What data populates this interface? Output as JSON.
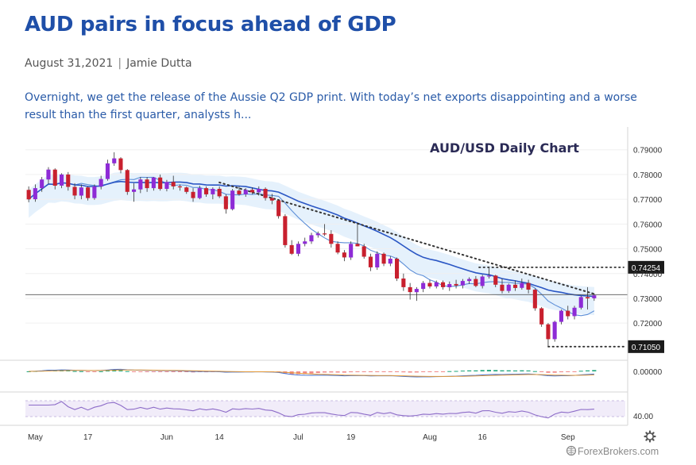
{
  "article": {
    "title": "AUD pairs in focus ahead of GDP",
    "date": "August 31,2021",
    "author": "Jamie Dutta",
    "summary": "Overnight, we get the release of the Aussie Q2 GDP print. With today’s net exports disappointing and a worse result than the first quarter, analysts h..."
  },
  "watermark": "ForexBrokers.com",
  "icons": {
    "settings": "gear-icon",
    "watermark": "forexbrokers-logo-icon"
  },
  "colors": {
    "up": "#8e2bd6",
    "down": "#c8202e",
    "ma_fast": "#5d8fd8",
    "ma_slow": "#2a56c4",
    "band": "#dcecfb",
    "osc_pos": "#19a47a",
    "osc_neg": "#f08a8a",
    "rsi": "#8d6cc8"
  },
  "chart_data": {
    "type": "candlestick",
    "title": "AUD/USD Daily Chart",
    "y_ticks": [
      "0.79000",
      "0.78000",
      "0.77000",
      "0.76000",
      "0.75000",
      "0.74000",
      "0.73000",
      "0.72000"
    ],
    "ylim": [
      0.705,
      0.796
    ],
    "x_ticks": [
      "May",
      "17",
      "Jun",
      "14",
      "Jul",
      "19",
      "Aug",
      "16",
      "Sep"
    ],
    "horizontal_levels": [
      {
        "label": "0.74254",
        "value": 0.74254
      },
      {
        "label": "0.71050",
        "value": 0.7105
      }
    ],
    "current_price": 0.7315,
    "trendline": {
      "from": [
        "Jun 11",
        0.7768
      ],
      "to": [
        "Aug 30",
        0.7318
      ]
    },
    "candles_ohlc": [
      [
        0.7738,
        0.7752,
        0.7688,
        0.77
      ],
      [
        0.77,
        0.776,
        0.769,
        0.7745
      ],
      [
        0.7745,
        0.779,
        0.773,
        0.778
      ],
      [
        0.778,
        0.783,
        0.7762,
        0.782
      ],
      [
        0.782,
        0.7825,
        0.774,
        0.7755
      ],
      [
        0.7755,
        0.7805,
        0.7745,
        0.78
      ],
      [
        0.78,
        0.781,
        0.7735,
        0.775
      ],
      [
        0.775,
        0.7765,
        0.77,
        0.7715
      ],
      [
        0.7715,
        0.776,
        0.77,
        0.7748
      ],
      [
        0.7748,
        0.7752,
        0.7695,
        0.7705
      ],
      [
        0.7705,
        0.776,
        0.7698,
        0.7752
      ],
      [
        0.7752,
        0.7795,
        0.774,
        0.7782
      ],
      [
        0.7782,
        0.786,
        0.7775,
        0.7845
      ],
      [
        0.7845,
        0.789,
        0.7835,
        0.7865
      ],
      [
        0.7865,
        0.787,
        0.7805,
        0.7818
      ],
      [
        0.7818,
        0.7822,
        0.7718,
        0.773
      ],
      [
        0.773,
        0.7765,
        0.769,
        0.774
      ],
      [
        0.774,
        0.779,
        0.7725,
        0.778
      ],
      [
        0.778,
        0.779,
        0.773,
        0.7745
      ],
      [
        0.7745,
        0.779,
        0.7735,
        0.7788
      ],
      [
        0.7788,
        0.78,
        0.7735,
        0.7742
      ],
      [
        0.7742,
        0.7778,
        0.7732,
        0.777
      ],
      [
        0.777,
        0.7795,
        0.774,
        0.7752
      ],
      [
        0.7752,
        0.776,
        0.7735,
        0.7748
      ],
      [
        0.7748,
        0.7752,
        0.7722,
        0.773
      ],
      [
        0.773,
        0.7745,
        0.769,
        0.7705
      ],
      [
        0.7705,
        0.7755,
        0.77,
        0.7745
      ],
      [
        0.7745,
        0.7752,
        0.771,
        0.772
      ],
      [
        0.772,
        0.7748,
        0.77,
        0.7742
      ],
      [
        0.7742,
        0.7752,
        0.7705,
        0.7712
      ],
      [
        0.7712,
        0.772,
        0.7642,
        0.766
      ],
      [
        0.766,
        0.7742,
        0.7655,
        0.7735
      ],
      [
        0.7735,
        0.7752,
        0.7715,
        0.772
      ],
      [
        0.772,
        0.7745,
        0.771,
        0.7738
      ],
      [
        0.7738,
        0.7748,
        0.772,
        0.7728
      ],
      [
        0.7728,
        0.7752,
        0.7715,
        0.7742
      ],
      [
        0.7742,
        0.7748,
        0.7695,
        0.7705
      ],
      [
        0.7705,
        0.7722,
        0.768,
        0.7695
      ],
      [
        0.7695,
        0.77,
        0.7622,
        0.7632
      ],
      [
        0.7632,
        0.764,
        0.7505,
        0.7515
      ],
      [
        0.7515,
        0.7535,
        0.7475,
        0.748
      ],
      [
        0.748,
        0.753,
        0.747,
        0.752
      ],
      [
        0.752,
        0.7545,
        0.751,
        0.753
      ],
      [
        0.753,
        0.7565,
        0.752,
        0.7555
      ],
      [
        0.7555,
        0.757,
        0.7545,
        0.7562
      ],
      [
        0.7562,
        0.76,
        0.7552,
        0.756
      ],
      [
        0.756,
        0.7575,
        0.7505,
        0.752
      ],
      [
        0.752,
        0.753,
        0.7478,
        0.7485
      ],
      [
        0.7485,
        0.7495,
        0.745,
        0.7465
      ],
      [
        0.7465,
        0.753,
        0.7455,
        0.752
      ],
      [
        0.752,
        0.76,
        0.751,
        0.751
      ],
      [
        0.751,
        0.752,
        0.746,
        0.7468
      ],
      [
        0.7468,
        0.748,
        0.741,
        0.7425
      ],
      [
        0.7425,
        0.749,
        0.7415,
        0.748
      ],
      [
        0.748,
        0.7485,
        0.743,
        0.744
      ],
      [
        0.744,
        0.747,
        0.743,
        0.746
      ],
      [
        0.746,
        0.7465,
        0.737,
        0.738
      ],
      [
        0.738,
        0.74,
        0.733,
        0.7345
      ],
      [
        0.7345,
        0.7362,
        0.7295,
        0.7325
      ],
      [
        0.7325,
        0.7345,
        0.729,
        0.7338
      ],
      [
        0.7338,
        0.737,
        0.7325,
        0.7362
      ],
      [
        0.7362,
        0.7375,
        0.734,
        0.7348
      ],
      [
        0.7348,
        0.7372,
        0.734,
        0.7365
      ],
      [
        0.7365,
        0.7372,
        0.7335,
        0.7345
      ],
      [
        0.7345,
        0.7368,
        0.733,
        0.7358
      ],
      [
        0.7358,
        0.7375,
        0.734,
        0.7352
      ],
      [
        0.7352,
        0.7378,
        0.734,
        0.737
      ],
      [
        0.737,
        0.7385,
        0.7358,
        0.7378
      ],
      [
        0.7378,
        0.739,
        0.7345,
        0.735
      ],
      [
        0.735,
        0.7395,
        0.734,
        0.7388
      ],
      [
        0.7388,
        0.7428,
        0.738,
        0.7392
      ],
      [
        0.7392,
        0.7395,
        0.7345,
        0.7355
      ],
      [
        0.7355,
        0.738,
        0.732,
        0.733
      ],
      [
        0.733,
        0.736,
        0.7322,
        0.7355
      ],
      [
        0.7355,
        0.7372,
        0.733,
        0.7342
      ],
      [
        0.7342,
        0.738,
        0.7335,
        0.7362
      ],
      [
        0.7362,
        0.7375,
        0.732,
        0.7335
      ],
      [
        0.7335,
        0.734,
        0.725,
        0.726
      ],
      [
        0.726,
        0.7265,
        0.7185,
        0.7195
      ],
      [
        0.7195,
        0.72,
        0.7105,
        0.7135
      ],
      [
        0.7135,
        0.721,
        0.7125,
        0.7205
      ],
      [
        0.7205,
        0.7255,
        0.7195,
        0.725
      ],
      [
        0.725,
        0.727,
        0.7215,
        0.7228
      ],
      [
        0.7228,
        0.727,
        0.7215,
        0.7262
      ],
      [
        0.7262,
        0.731,
        0.7255,
        0.7305
      ],
      [
        0.7305,
        0.7345,
        0.7255,
        0.73
      ],
      [
        0.73,
        0.732,
        0.729,
        0.7312
      ]
    ],
    "indicators": [
      "moving average (fast)",
      "moving average (slow)",
      "envelope band",
      "MACD histogram",
      "RSI"
    ],
    "macd_axis_label": "0.00000",
    "rsi_axis_label": "40.00"
  }
}
